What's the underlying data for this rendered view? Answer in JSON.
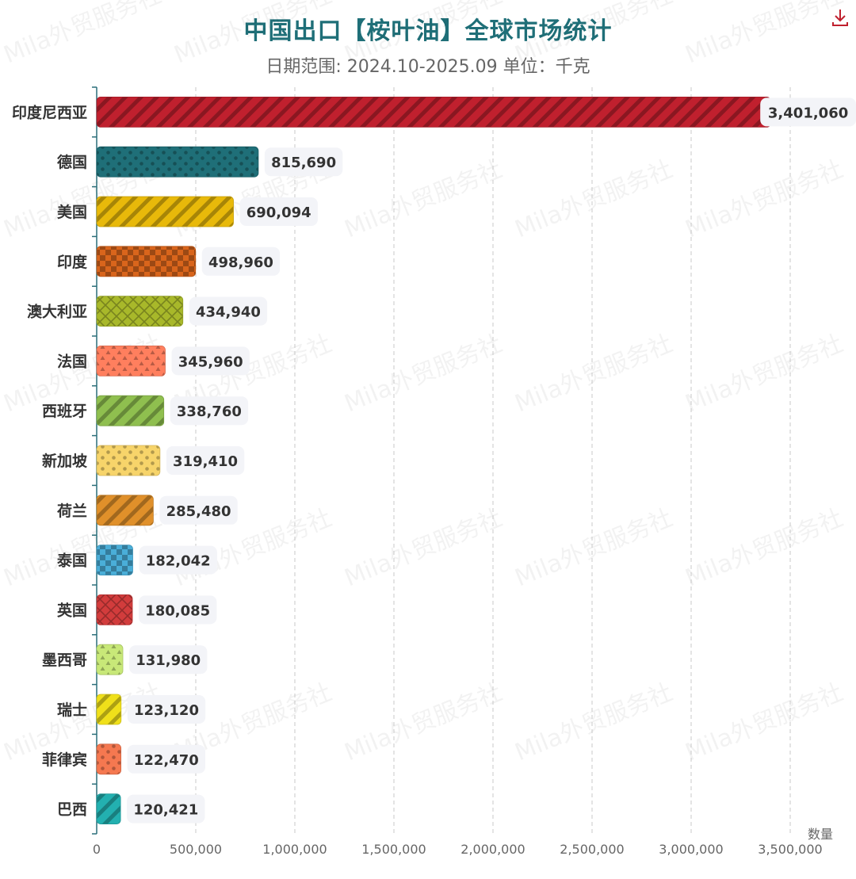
{
  "title": "中国出口【桉叶油】全球市场统计",
  "subtitle": "日期范围: 2024.10-2025.09    单位：千克",
  "watermark": "Mila外贸服务社",
  "download_icon": "download-icon",
  "colors": {
    "title": "#1f6f78",
    "axis": "#2b6f7a",
    "grid": "#c8c8c8",
    "label_bg": "#f3f4f8",
    "label_text": "#333333"
  },
  "chart_data": {
    "type": "bar",
    "orientation": "horizontal",
    "title": "中国出口【桉叶油】全球市场统计",
    "subtitle": "日期范围: 2024.10-2025.09    单位：千克",
    "xlabel": "数量",
    "ylabel": "",
    "xlim": [
      0,
      3500000
    ],
    "x_ticks": [
      0,
      500000,
      1000000,
      1500000,
      2000000,
      2500000,
      3000000,
      3500000
    ],
    "x_tick_labels": [
      "0",
      "500,000",
      "1,000,000",
      "1,500,000",
      "2,000,000",
      "2,500,000",
      "3,000,000",
      "3,500,000"
    ],
    "grid": true,
    "categories": [
      "印度尼西亚",
      "德国",
      "美国",
      "印度",
      "澳大利亚",
      "法国",
      "西班牙",
      "新加坡",
      "荷兰",
      "泰国",
      "英国",
      "墨西哥",
      "瑞士",
      "菲律宾",
      "巴西"
    ],
    "values": [
      3401060,
      815690,
      690094,
      498960,
      434940,
      345960,
      338760,
      319410,
      285480,
      182042,
      180085,
      131980,
      123120,
      122470,
      120421
    ],
    "value_labels": [
      "3,401,060",
      "815,690",
      "690,094",
      "498,960",
      "434,940",
      "345,960",
      "338,760",
      "319,410",
      "285,480",
      "182,042",
      "180,085",
      "131,980",
      "123,120",
      "122,470",
      "120,421"
    ],
    "bar_colors": [
      "#c0202e",
      "#1f6f78",
      "#e8b90a",
      "#d9651c",
      "#a8b82a",
      "#ff7f5e",
      "#8fbf4f",
      "#f7d46a",
      "#e0902a",
      "#4aaed8",
      "#d23c3c",
      "#c8e878",
      "#f0e01a",
      "#f57850",
      "#23b0b0"
    ],
    "bar_patterns": [
      "stripes",
      "dots",
      "stripes",
      "checks",
      "crosshatch",
      "triangles",
      "stripes",
      "dots",
      "stripes",
      "checks",
      "crosshatch",
      "triangles",
      "stripes",
      "dots",
      "stripes"
    ]
  }
}
